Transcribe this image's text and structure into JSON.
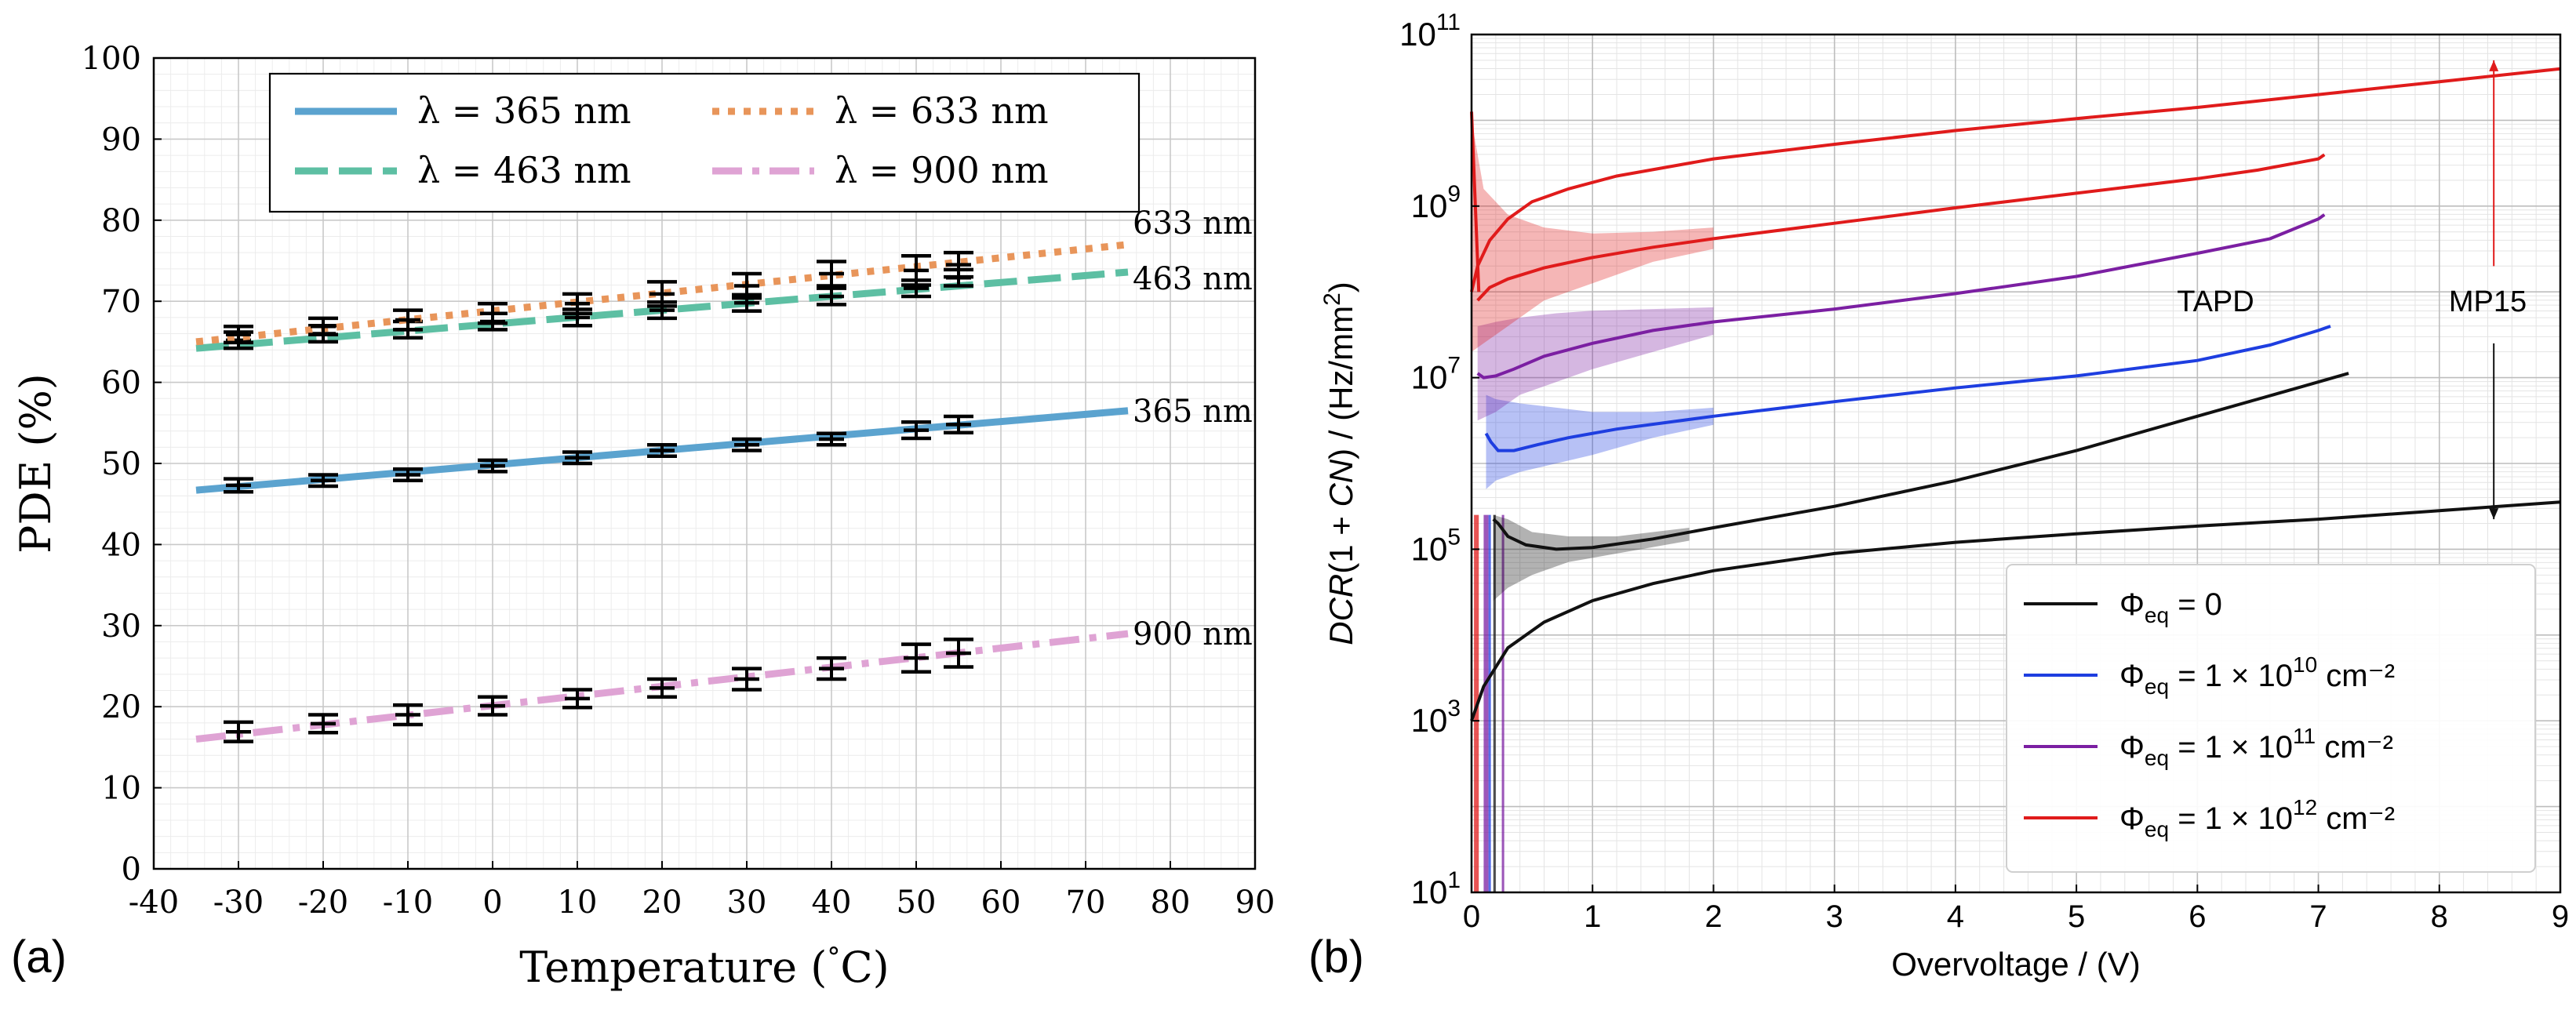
{
  "chart_data": [
    {
      "panel": "(a)",
      "type": "line",
      "xlabel": "Temperature (°C)",
      "ylabel": "PDE (%)",
      "xlim": [
        -40,
        90
      ],
      "ylim": [
        0,
        100
      ],
      "xticks": [
        -40,
        -30,
        -20,
        -10,
        0,
        10,
        20,
        30,
        40,
        50,
        60,
        70,
        80,
        90
      ],
      "yticks": [
        0,
        10,
        20,
        30,
        40,
        50,
        60,
        70,
        80,
        90,
        100
      ],
      "grid": true,
      "legend": "top-center",
      "series": [
        {
          "name": "λ = 365 nm",
          "end_label": "365 nm",
          "color": "#5ba3cf",
          "style": "solid",
          "fit": {
            "x": [
              -35,
              75
            ],
            "y": [
              46.7,
              56.5
            ]
          },
          "points": {
            "x": [
              -30,
              -20,
              -10,
              0,
              10,
              20,
              30,
              40,
              50,
              55
            ],
            "y": [
              47.3,
              47.9,
              48.6,
              49.7,
              50.7,
              51.6,
              52.3,
              53.0,
              54.1,
              54.8
            ],
            "err": [
              0.8,
              0.7,
              0.7,
              0.7,
              0.7,
              0.7,
              0.7,
              0.7,
              1.0,
              1.0
            ]
          }
        },
        {
          "name": "λ = 463 nm",
          "end_label": "463 nm",
          "color": "#5dbfa3",
          "style": "dashed",
          "fit": {
            "x": [
              -35,
              75
            ],
            "y": [
              64.2,
              73.6
            ]
          },
          "points": {
            "x": [
              -30,
              -20,
              -10,
              0,
              10,
              20,
              30,
              40,
              50,
              55
            ],
            "y": [
              65.2,
              66.0,
              66.5,
              67.5,
              68.0,
              68.9,
              69.8,
              70.6,
              71.6,
              72.9
            ],
            "err": [
              1.0,
              1.0,
              1.0,
              1.0,
              1.0,
              1.0,
              1.0,
              1.0,
              1.0,
              1.0
            ]
          }
        },
        {
          "name": "λ = 633 nm",
          "end_label": "633 nm",
          "color": "#e8955a",
          "style": "dotted",
          "fit": {
            "x": [
              -35,
              75
            ],
            "y": [
              65.0,
              77.0
            ]
          },
          "points": {
            "x": [
              -30,
              -20,
              -10,
              0,
              10,
              20,
              30,
              40,
              50,
              55
            ],
            "y": [
              65.9,
              66.9,
              67.7,
              68.5,
              69.7,
              70.9,
              71.9,
              73.4,
              73.8,
              74.5
            ],
            "err": [
              1.0,
              1.0,
              1.2,
              1.2,
              1.2,
              1.5,
              1.5,
              1.5,
              1.8,
              1.5
            ]
          }
        },
        {
          "name": "λ = 900 nm",
          "end_label": "900 nm",
          "color": "#dfa3d4",
          "style": "dashdot",
          "fit": {
            "x": [
              -35,
              75
            ],
            "y": [
              16.0,
              29.0
            ]
          },
          "points": {
            "x": [
              -30,
              -20,
              -10,
              0,
              10,
              20,
              30,
              40,
              50,
              55
            ],
            "y": [
              16.9,
              17.9,
              19.0,
              20.1,
              21.0,
              22.3,
              23.4,
              24.7,
              26.0,
              26.6
            ],
            "err": [
              1.2,
              1.1,
              1.2,
              1.1,
              1.1,
              1.1,
              1.3,
              1.3,
              1.7,
              1.7
            ]
          }
        }
      ]
    },
    {
      "panel": "(b)",
      "type": "line",
      "xlabel": "Overvoltage / (V)",
      "ylabel": "DCR(1 + CN) / (Hz/mm²)",
      "xlim": [
        0,
        9
      ],
      "ylim_log10": [
        1,
        11
      ],
      "xticks": [
        0,
        1,
        2,
        3,
        4,
        5,
        6,
        7,
        8,
        9
      ],
      "ytick_labels": [
        {
          "base": "10",
          "exp": "1",
          "log": 1
        },
        {
          "base": "10",
          "exp": "3",
          "log": 3
        },
        {
          "base": "10",
          "exp": "5",
          "log": 5
        },
        {
          "base": "10",
          "exp": "7",
          "log": 7
        },
        {
          "base": "10",
          "exp": "9",
          "log": 9
        },
        {
          "base": "10",
          "exp": "11",
          "log": 11
        }
      ],
      "grid": true,
      "legend": "bottom-right",
      "annotations": [
        {
          "text": "TAPD",
          "x": 6.15,
          "log": 7.9
        },
        {
          "text": "MP15",
          "x": 8.4,
          "log": 7.9
        }
      ],
      "arrows": [
        {
          "x": 8.45,
          "from_log": 8.3,
          "to_log": 10.7,
          "color": "#e01b1b"
        },
        {
          "x": 8.45,
          "from_log": 7.4,
          "to_log": 5.35,
          "color": "#111111"
        }
      ],
      "series": [
        {
          "name": "Φeq = 0",
          "legend_main": "Φ",
          "legend_sub": "eq",
          "legend_rest": " = 0",
          "legend_sup": "",
          "legend_tail": "",
          "color": "#111111",
          "mp15": {
            "x": [
              0.0,
              0.1,
              0.3,
              0.6,
              1.0,
              1.5,
              2.0,
              3.0,
              4.0,
              5.0,
              6.0,
              7.0,
              8.0,
              9.0
            ],
            "log": [
              3.0,
              3.4,
              3.85,
              4.15,
              4.4,
              4.6,
              4.75,
              4.95,
              5.08,
              5.18,
              5.27,
              5.35,
              5.45,
              5.55
            ]
          },
          "tapd": {
            "x": [
              0.18,
              0.22,
              0.3,
              0.45,
              0.7,
              1.0,
              1.5,
              2.0,
              3.0,
              4.0,
              5.0,
              6.0,
              6.5,
              7.0,
              7.25
            ],
            "log": [
              5.35,
              5.3,
              5.15,
              5.05,
              5.0,
              5.02,
              5.12,
              5.25,
              5.5,
              5.8,
              6.15,
              6.55,
              6.75,
              6.95,
              7.05
            ]
          },
          "band_tapd": {
            "x": [
              0.18,
              0.3,
              0.5,
              0.8,
              1.2,
              1.8
            ],
            "lo": [
              4.4,
              4.55,
              4.7,
              4.85,
              4.95,
              5.1
            ],
            "hi": [
              5.4,
              5.35,
              5.2,
              5.15,
              5.15,
              5.25
            ]
          }
        },
        {
          "name": "Φeq = 1 × 10^10 cm^-2",
          "legend_main": "Φ",
          "legend_sub": "eq",
          "legend_rest": " = 1 × 10",
          "legend_sup": "10",
          "legend_tail": " cm⁻²",
          "color": "#1e3ee0",
          "tapd": {
            "x": [
              0.12,
              0.16,
              0.22,
              0.35,
              0.55,
              0.8,
              1.2,
              2.0,
              3.0,
              4.0,
              5.0,
              6.0,
              6.6,
              7.0,
              7.1
            ],
            "log": [
              6.35,
              6.25,
              6.15,
              6.15,
              6.22,
              6.3,
              6.4,
              6.55,
              6.72,
              6.88,
              7.02,
              7.2,
              7.38,
              7.55,
              7.6
            ]
          },
          "band_tapd": {
            "x": [
              0.12,
              0.2,
              0.4,
              0.7,
              1.0,
              1.5,
              2.0
            ],
            "lo": [
              5.7,
              5.8,
              5.9,
              6.0,
              6.1,
              6.3,
              6.45
            ],
            "hi": [
              6.8,
              6.75,
              6.7,
              6.65,
              6.6,
              6.6,
              6.65
            ]
          }
        },
        {
          "name": "Φeq = 1 × 10^11 cm^-2",
          "legend_main": "Φ",
          "legend_sub": "eq",
          "legend_rest": " = 1 × 10",
          "legend_sup": "11",
          "legend_tail": " cm⁻²",
          "color": "#7b1fa2",
          "tapd": {
            "x": [
              0.05,
              0.1,
              0.2,
              0.35,
              0.6,
              1.0,
              1.5,
              2.0,
              3.0,
              4.0,
              5.0,
              6.0,
              6.6,
              7.0,
              7.05
            ],
            "log": [
              7.05,
              7.0,
              7.02,
              7.1,
              7.25,
              7.4,
              7.55,
              7.65,
              7.8,
              7.98,
              8.18,
              8.45,
              8.62,
              8.85,
              8.9
            ]
          },
          "band_tapd": {
            "x": [
              0.05,
              0.2,
              0.4,
              0.7,
              1.0,
              1.5,
              2.0
            ],
            "lo": [
              6.5,
              6.6,
              6.8,
              6.95,
              7.1,
              7.3,
              7.5
            ],
            "hi": [
              7.6,
              7.65,
              7.7,
              7.75,
              7.78,
              7.8,
              7.82
            ]
          }
        },
        {
          "name": "Φeq = 1 × 10^12 cm^-2",
          "legend_main": "Φ",
          "legend_sub": "eq",
          "legend_rest": " = 1 × 10",
          "legend_sup": "12",
          "legend_tail": " cm⁻²",
          "color": "#e01b1b",
          "mp15": {
            "x": [
              0.0,
              0.05,
              0.15,
              0.3,
              0.5,
              0.8,
              1.2,
              2.0,
              3.0,
              4.0,
              5.0,
              6.0,
              7.0,
              8.0,
              9.0
            ],
            "log": [
              8.0,
              8.3,
              8.6,
              8.85,
              9.05,
              9.2,
              9.35,
              9.55,
              9.72,
              9.88,
              10.02,
              10.15,
              10.3,
              10.45,
              10.6
            ]
          },
          "tapd": {
            "x": [
              0.05,
              0.15,
              0.3,
              0.6,
              1.0,
              1.5,
              2.0,
              3.0,
              4.0,
              5.0,
              6.0,
              6.5,
              7.0,
              7.05
            ],
            "log": [
              7.9,
              8.05,
              8.15,
              8.28,
              8.4,
              8.52,
              8.62,
              8.8,
              8.98,
              9.15,
              9.32,
              9.42,
              9.55,
              9.6
            ]
          },
          "band_tapd": {
            "x": [
              0.0,
              0.1,
              0.3,
              0.6,
              1.0,
              1.5,
              2.0
            ],
            "lo": [
              7.3,
              7.4,
              7.6,
              7.9,
              8.1,
              8.35,
              8.5
            ],
            "hi": [
              10.0,
              9.2,
              8.9,
              8.75,
              8.68,
              8.7,
              8.75
            ]
          }
        }
      ]
    }
  ],
  "labels": {
    "panel_a": "(a)",
    "panel_b": "(b)",
    "a_xlabel": "Temperature (",
    "a_xlabel_deg": "°",
    "a_xlabel_c": "C)",
    "a_ylabel": "PDE (%)",
    "b_xlabel": "Overvoltage / (V)",
    "b_ylabel_italic": "DCR",
    "b_ylabel_mid": "(1 + ",
    "b_ylabel_cn": "CN",
    "b_ylabel_rest": ") / (Hz/mm",
    "b_ylabel_sup": "2",
    "b_ylabel_close": ")"
  }
}
